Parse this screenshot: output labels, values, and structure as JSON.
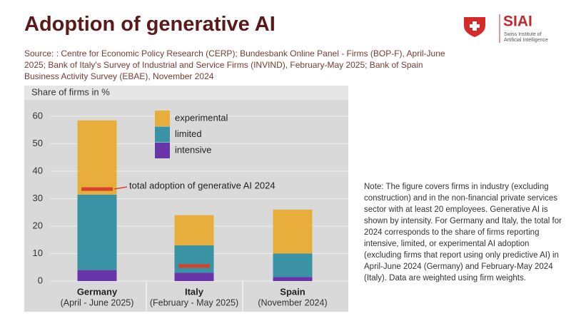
{
  "chart_data": {
    "type": "bar",
    "stacked": true,
    "title": "Adoption of generative AI",
    "source": "Source: : Centre for Economic Policy Research (CERP);  Bundesbank Online Panel - Firms (BOP-F), April-June 2025; Bank of Italy's Survey of Industrial and Service Firms (INVIND), February-May 2025; Bank of Spain Business Activity Survey (EBAE), November 2024",
    "y_axis_label": "Share of firms in %",
    "categories": [
      "Germany",
      "Italy",
      "Spain"
    ],
    "category_sublabels": [
      "(April - June 2025)",
      "(February - May 2025)",
      "(November 2024)"
    ],
    "series": [
      {
        "name": "intensive",
        "color": "#6a35a8",
        "values": [
          4,
          3,
          1.5
        ]
      },
      {
        "name": "limited",
        "color": "#3a93a5",
        "values": [
          27.5,
          10,
          8.5
        ]
      },
      {
        "name": "experimental",
        "color": "#e8ae3c",
        "values": [
          27,
          11,
          16
        ]
      }
    ],
    "markers": {
      "name": "total adoption of generative AI 2024",
      "color": "#d9412b",
      "values": [
        33.5,
        5.5,
        null
      ]
    },
    "ylim": [
      0,
      60
    ],
    "yticks": [
      0,
      10,
      20,
      30,
      40,
      50,
      60
    ],
    "grid": true,
    "note": "Note: The figure covers firms in industry (excluding construction) and in the non-financial private services sector with at least 20 employees. Generative AI is shown by intensity. For Germany and Italy, the total for 2024 corresponds to the share of firms reporting intensive, limited, or experimental AI adoption (excluding firms that report using only predictive AI) in April-June 2024 (Germany) and February-May 2024 (Italy). Data are weighted using firm weights."
  },
  "logo": {
    "name": "SIAI",
    "subtitle_line1": "Swiss Institute of",
    "subtitle_line2": "Artificial Intelligence"
  }
}
